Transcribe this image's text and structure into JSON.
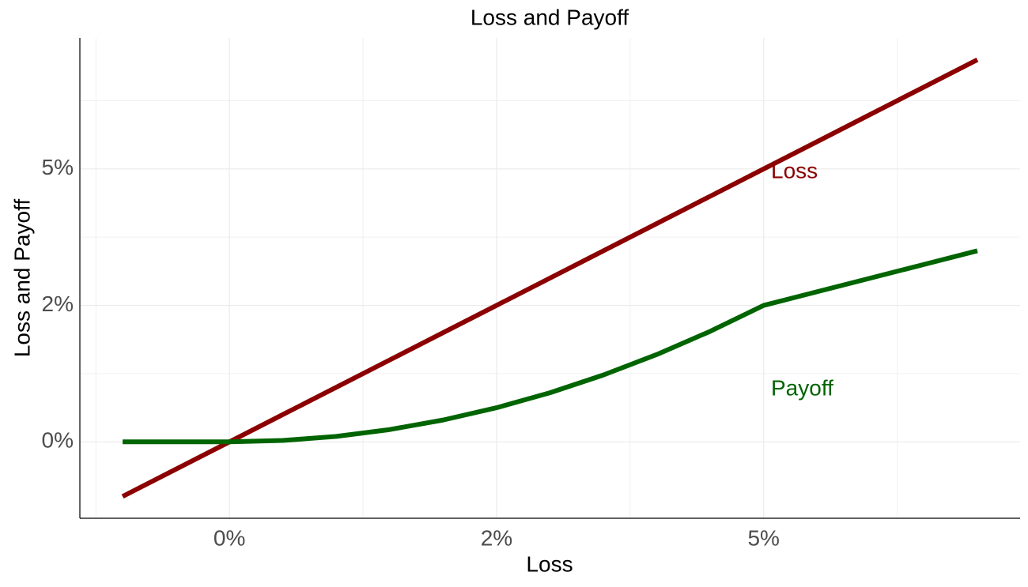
{
  "chart_data": {
    "type": "line",
    "title": "Loss and Payoff",
    "x_label": "Loss",
    "y_label": "Loss and Payoff",
    "x": [
      -1,
      -0.5,
      0,
      0.5,
      1,
      1.5,
      2,
      2.5,
      3,
      3.5,
      4,
      4.5,
      5,
      5.5,
      6,
      6.5,
      7
    ],
    "series": [
      {
        "name": "Loss",
        "color": "#8b0000",
        "values": [
          -1,
          -0.5,
          0,
          0.5,
          1,
          1.5,
          2,
          2.5,
          3,
          3.5,
          4,
          4.5,
          5,
          5.5,
          6,
          6.5,
          7
        ]
      },
      {
        "name": "Payoff",
        "color": "#006400",
        "values": [
          0,
          0,
          0,
          0.025,
          0.1,
          0.225,
          0.4,
          0.625,
          0.9,
          1.225,
          1.6,
          2.025,
          2.5,
          2.75,
          3,
          3.25,
          3.5
        ]
      }
    ],
    "xlim": [
      -1.4,
      7.4
    ],
    "ylim": [
      -1.4,
      7.4
    ],
    "xticks": [
      {
        "value": 0,
        "label": "0%"
      },
      {
        "value": 2.5,
        "label": "2%"
      },
      {
        "value": 5,
        "label": "5%"
      }
    ],
    "yticks": [
      {
        "value": 0,
        "label": "0%"
      },
      {
        "value": 2.5,
        "label": "2%"
      },
      {
        "value": 5,
        "label": "5%"
      }
    ],
    "x_minor_grid": [
      -1.25,
      1.25,
      3.75,
      6.25
    ],
    "y_minor_grid": [
      1.25,
      3.75,
      6.25
    ],
    "grid": true
  }
}
